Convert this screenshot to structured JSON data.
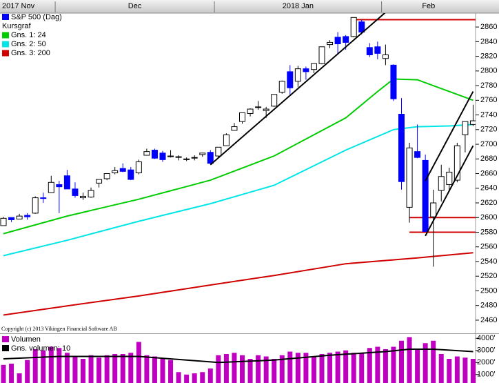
{
  "chart_data": [
    {
      "type": "candlestick",
      "subtitle": "Kursgraf",
      "note": "Copyright (c) 2013 Vikingen Financial Software AB",
      "categories": [
        "2017 Nov",
        null,
        null,
        null,
        null,
        null,
        null,
        "Dec",
        null,
        null,
        null,
        null,
        null,
        null,
        null,
        null,
        null,
        null,
        null,
        null,
        null,
        null,
        null,
        null,
        null,
        null,
        null,
        "2018 Jan",
        null,
        null,
        null,
        null,
        null,
        null,
        null,
        null,
        null,
        null,
        null,
        null,
        null,
        null,
        null,
        null,
        null,
        null,
        null,
        null,
        "Feb",
        null,
        null,
        null,
        null,
        null,
        null,
        null,
        null,
        null,
        null,
        null
      ],
      "series": [
        {
          "name": "S&P 500 (Dag)",
          "color": "#0000ff",
          "up_color": "#ffffff",
          "open": [
            2589,
            2600,
            2598,
            2603,
            2606,
            2627,
            2634,
            2645,
            2657,
            2639,
            2627,
            2628,
            2647,
            2653,
            2661,
            2667,
            2665,
            2661,
            2685,
            2692,
            2688,
            2683,
            2683,
            2680,
            2682,
            2686,
            2689,
            2684,
            2698,
            2719,
            2731,
            2742,
            2751,
            2746,
            2752,
            2771,
            2799,
            2786,
            2803,
            2802,
            2810,
            2836,
            2846,
            2847,
            2847,
            2867,
            2832,
            2833,
            2817,
            2808,
            2741,
            2614,
            2690,
            2678,
            2601,
            2637,
            2645,
            2651,
            2713,
            2727
          ],
          "high": [
            2601,
            2600,
            2605,
            2606,
            2629,
            2634,
            2657,
            2650,
            2665,
            2648,
            2634,
            2641,
            2652,
            2660,
            2669,
            2674,
            2669,
            2679,
            2694,
            2694,
            2691,
            2692,
            2685,
            2682,
            2685,
            2688,
            2692,
            2696,
            2715,
            2729,
            2743,
            2749,
            2759,
            2751,
            2768,
            2787,
            2808,
            2807,
            2806,
            2810,
            2833,
            2842,
            2853,
            2849,
            2873,
            2870,
            2838,
            2840,
            2836,
            2809,
            2763,
            2702,
            2727,
            2686,
            2638,
            2672,
            2668,
            2702,
            2731,
            2754
          ],
          "low": [
            2589,
            2594,
            2598,
            2597,
            2605,
            2620,
            2634,
            2606,
            2639,
            2627,
            2624,
            2627,
            2641,
            2651,
            2659,
            2662,
            2651,
            2659,
            2685,
            2680,
            2676,
            2682,
            2678,
            2677,
            2678,
            2683,
            2673,
            2682,
            2698,
            2719,
            2728,
            2738,
            2747,
            2736,
            2751,
            2769,
            2768,
            2778,
            2788,
            2797,
            2809,
            2831,
            2823,
            2829,
            2846,
            2850,
            2819,
            2816,
            2808,
            2759,
            2638,
            2593,
            2681,
            2581,
            2533,
            2622,
            2637,
            2648,
            2689,
            2725
          ],
          "close": [
            2599,
            2597,
            2602,
            2601,
            2627,
            2626,
            2648,
            2642,
            2639,
            2630,
            2629,
            2637,
            2652,
            2660,
            2664,
            2663,
            2652,
            2676,
            2690,
            2681,
            2679,
            2684,
            2683,
            2680,
            2682,
            2688,
            2674,
            2696,
            2713,
            2724,
            2743,
            2748,
            2751,
            2748,
            2768,
            2786,
            2777,
            2803,
            2799,
            2810,
            2833,
            2839,
            2837,
            2839,
            2873,
            2853,
            2822,
            2824,
            2822,
            2762,
            2649,
            2695,
            2682,
            2581,
            2620,
            2656,
            2662,
            2698,
            2731,
            2732
          ]
        }
      ],
      "overlays": [
        {
          "name": "Gns. 1: 24",
          "color": "#00cc00",
          "x": [
            0,
            8,
            17,
            26,
            34,
            43,
            47,
            49,
            52,
            56,
            59
          ],
          "values": [
            2578,
            2602,
            2625,
            2651,
            2684,
            2736,
            2772,
            2789,
            2788,
            2772,
            2760
          ]
        },
        {
          "name": "Gns. 2: 50",
          "color": "#00e5e5",
          "x": [
            0,
            8,
            17,
            26,
            34,
            43,
            49,
            52,
            56,
            59
          ],
          "values": [
            2548,
            2569,
            2595,
            2619,
            2644,
            2692,
            2720,
            2724,
            2725,
            2727
          ]
        },
        {
          "name": "Gns. 3: 200",
          "color": "#d00000",
          "x": [
            0,
            9,
            17,
            26,
            34,
            43,
            52,
            59
          ],
          "values": [
            2467,
            2481,
            2493,
            2508,
            2521,
            2537,
            2545,
            2552
          ]
        }
      ],
      "hlines": [
        {
          "value": 2870,
          "color": "#d00000",
          "from": 44
        },
        {
          "value": 2600,
          "color": "#d00000",
          "from": 51
        },
        {
          "value": 2580,
          "color": "#d00000",
          "from": 51
        }
      ],
      "trendlines": [
        {
          "color": "#000000",
          "x": [
            26,
            48
          ],
          "values": [
            2672,
            2880
          ]
        },
        {
          "color": "#000000",
          "x": [
            53,
            59
          ],
          "values": [
            2650,
            2772
          ]
        },
        {
          "color": "#000000",
          "x": [
            53,
            59
          ],
          "values": [
            2575,
            2698
          ]
        }
      ],
      "ylim": [
        2443,
        2878
      ],
      "yticks": [
        2460,
        2480,
        2500,
        2520,
        2540,
        2560,
        2580,
        2600,
        2620,
        2640,
        2660,
        2680,
        2700,
        2720,
        2740,
        2760,
        2780,
        2800,
        2820,
        2840,
        2860
      ]
    },
    {
      "type": "bar",
      "series": [
        {
          "name": "Volumen",
          "color": "#c000c0",
          "values": [
            1800,
            1900,
            1100,
            2200,
            3100,
            3000,
            3300,
            3200,
            2800,
            2500,
            2300,
            2600,
            2400,
            2600,
            2700,
            2700,
            2800,
            3700,
            2600,
            2500,
            2300,
            2200,
            1200,
            1000,
            1100,
            1200,
            1500,
            2600,
            2700,
            2800,
            2600,
            2300,
            2600,
            2500,
            2300,
            2600,
            2900,
            2800,
            2800,
            2500,
            2700,
            2800,
            2900,
            3000,
            2800,
            2800,
            3200,
            3300,
            3100,
            3300,
            3800,
            4100,
            3100,
            3600,
            3800,
            2700,
            2300,
            2500,
            2400,
            2300
          ]
        }
      ],
      "overlays": [
        {
          "name": "Gns. volumen: 10",
          "color": "#000000",
          "x": [
            0,
            7,
            17,
            27,
            34,
            41,
            48,
            51,
            54,
            59
          ],
          "values": [
            2300,
            2500,
            2500,
            2000,
            2200,
            2600,
            2900,
            3100,
            3100,
            2900
          ]
        }
      ],
      "ylim": [
        300,
        4300
      ],
      "yticks": [
        {
          "value": 1000,
          "label": "1000'"
        },
        {
          "value": 2000,
          "label": "2000'"
        },
        {
          "value": 3000,
          "label": "3000'"
        },
        {
          "value": 4000,
          "label": "4000'"
        }
      ]
    }
  ]
}
